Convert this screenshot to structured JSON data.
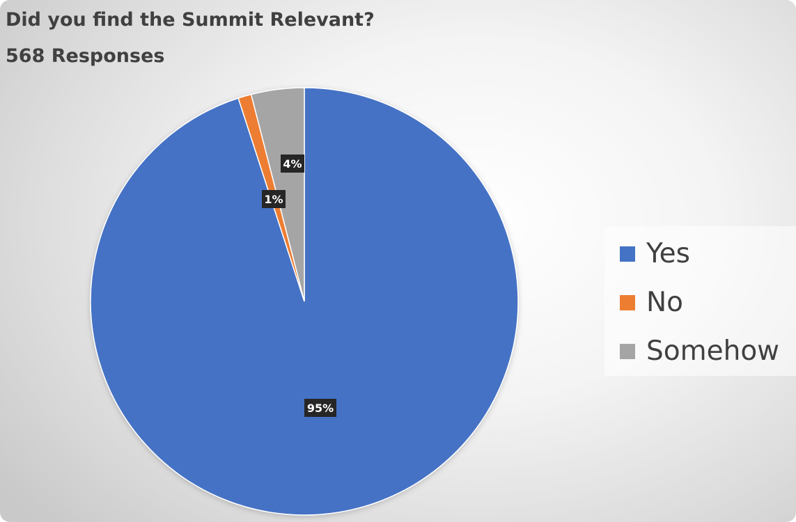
{
  "chart_data": {
    "type": "pie",
    "title": "Did you find the Summit Relevant?",
    "subtitle": "568 Responses",
    "slices": [
      {
        "name": "Yes",
        "value": 95,
        "label": "95%",
        "color": "#4472C4"
      },
      {
        "name": "No",
        "value": 1,
        "label": "1%",
        "color": "#ED7D31"
      },
      {
        "name": "Somehow",
        "value": 4,
        "label": "4%",
        "color": "#A5A5A5"
      }
    ],
    "legend": {
      "placement": "right",
      "items": [
        "Yes",
        "No",
        "Somehow"
      ]
    },
    "data_label_style": {
      "background": "#262626",
      "color": "#ffffff"
    }
  }
}
